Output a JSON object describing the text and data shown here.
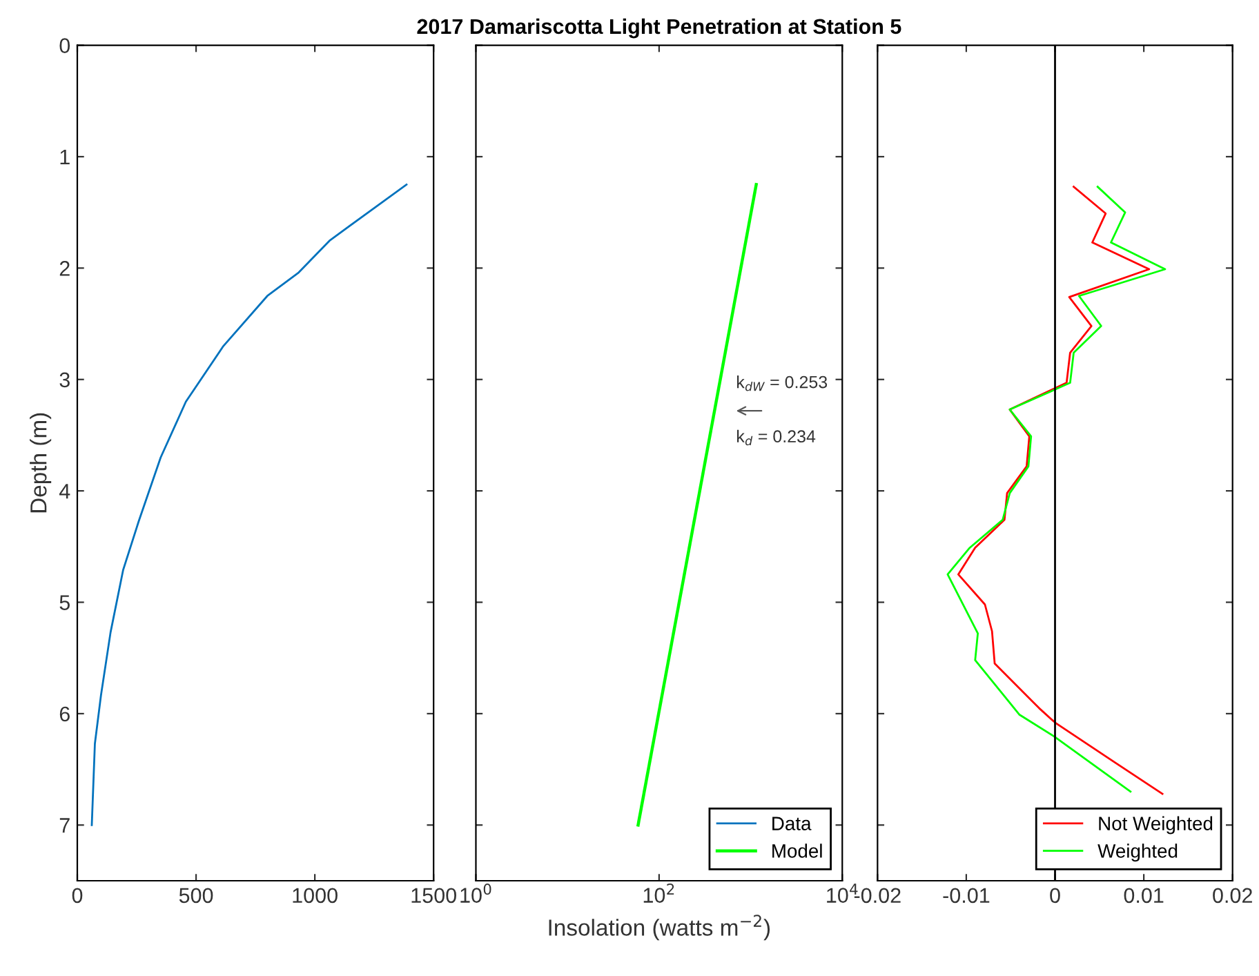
{
  "chart_data": [
    {
      "type": "line",
      "ylabel": "Depth (m)",
      "xlim": [
        0,
        1500
      ],
      "xticks": [
        0,
        500,
        1000,
        1500
      ],
      "ylim": [
        7.5,
        0
      ],
      "yticks": [
        0,
        1,
        2,
        3,
        4,
        5,
        6,
        7
      ],
      "grid": false,
      "legend": false,
      "series": [
        {
          "color": "#0072bd",
          "x": [
            1386,
            1064,
            932,
            800,
            615,
            457,
            351,
            259,
            193,
            140,
            100,
            74,
            61
          ],
          "values": [
            1.25,
            1.75,
            2.04,
            2.25,
            2.7,
            3.2,
            3.7,
            4.27,
            4.71,
            5.27,
            5.83,
            6.27,
            7.0
          ]
        }
      ]
    },
    {
      "type": "line",
      "title": "2017 Damariscotta Light Penetration at Station 5",
      "xlabel": "Insolation (watts m$^{−2}$)",
      "log": "x",
      "xlim": [
        1,
        10000
      ],
      "xticks": [
        {
          "value": 1,
          "label": "10$^{0}$"
        },
        {
          "value": 100,
          "label": "10$^{2}$"
        },
        {
          "value": 10000,
          "label": "10$^{4}$"
        }
      ],
      "ylim": [
        7.5,
        0
      ],
      "yticks": [
        0,
        1,
        2,
        3,
        4,
        5,
        6,
        7
      ],
      "tick_labels": "x",
      "grid": false,
      "legend": "bottom right",
      "annotations": [
        "k$_{dW}$ = 0.253",
        "k$_{d}$ = 0.234"
      ],
      "series": [
        {
          "name": "Data",
          "color": "#0072bd",
          "x": [
            null,
            null
          ],
          "values": [
            null,
            null
          ]
        },
        {
          "name": "Model",
          "color": "#00ff00",
          "x": [
            1150,
            59
          ],
          "values": [
            1.25,
            7.0
          ]
        }
      ]
    },
    {
      "type": "line",
      "xlim": [
        -0.02,
        0.02
      ],
      "xticks": [
        -0.02,
        -0.01,
        0,
        0.01,
        0.02
      ],
      "ylim": [
        7.5,
        0
      ],
      "yticks": [
        0,
        1,
        2,
        3,
        4,
        5,
        6,
        7
      ],
      "tick_labels": "x",
      "grid": false,
      "legend": "bottom right",
      "ref_lines": [
        {
          "axis": "x",
          "value": 0,
          "color": "#000000"
        }
      ],
      "series": [
        {
          "name": "Not Weighted",
          "color": "#ff0000",
          "x": [
            0.0021,
            0.0057,
            0.0042,
            0.0106,
            0.0016,
            0.0041,
            0.0017,
            0.0013,
            -0.0051,
            -0.0029,
            -0.0032,
            -0.0054,
            -0.0057,
            -0.009,
            -0.0109,
            -0.0079,
            -0.0071,
            -0.0068,
            -0.0018,
            0,
            0.0066,
            0.0121
          ],
          "values": [
            1.27,
            1.51,
            1.77,
            2.01,
            2.26,
            2.52,
            2.76,
            3.03,
            3.27,
            3.51,
            3.78,
            4.02,
            4.26,
            4.51,
            4.75,
            5.02,
            5.26,
            5.55,
            5.95,
            6.08,
            6.43,
            6.72
          ]
        },
        {
          "name": "Weighted",
          "color": "#00ff00",
          "x": [
            0.0048,
            0.0079,
            0.0063,
            0.0124,
            0.0027,
            0.0052,
            0.0021,
            0.0017,
            -0.0051,
            -0.0027,
            -0.003,
            -0.0051,
            -0.0059,
            -0.0096,
            -0.0121,
            -0.0087,
            -0.009,
            -0.004,
            0,
            0.0085
          ],
          "values": [
            1.27,
            1.5,
            1.77,
            2.01,
            2.25,
            2.52,
            2.76,
            3.03,
            3.27,
            3.51,
            3.78,
            4.02,
            4.26,
            4.51,
            4.75,
            5.28,
            5.52,
            6.01,
            6.21,
            6.7
          ]
        }
      ]
    }
  ]
}
